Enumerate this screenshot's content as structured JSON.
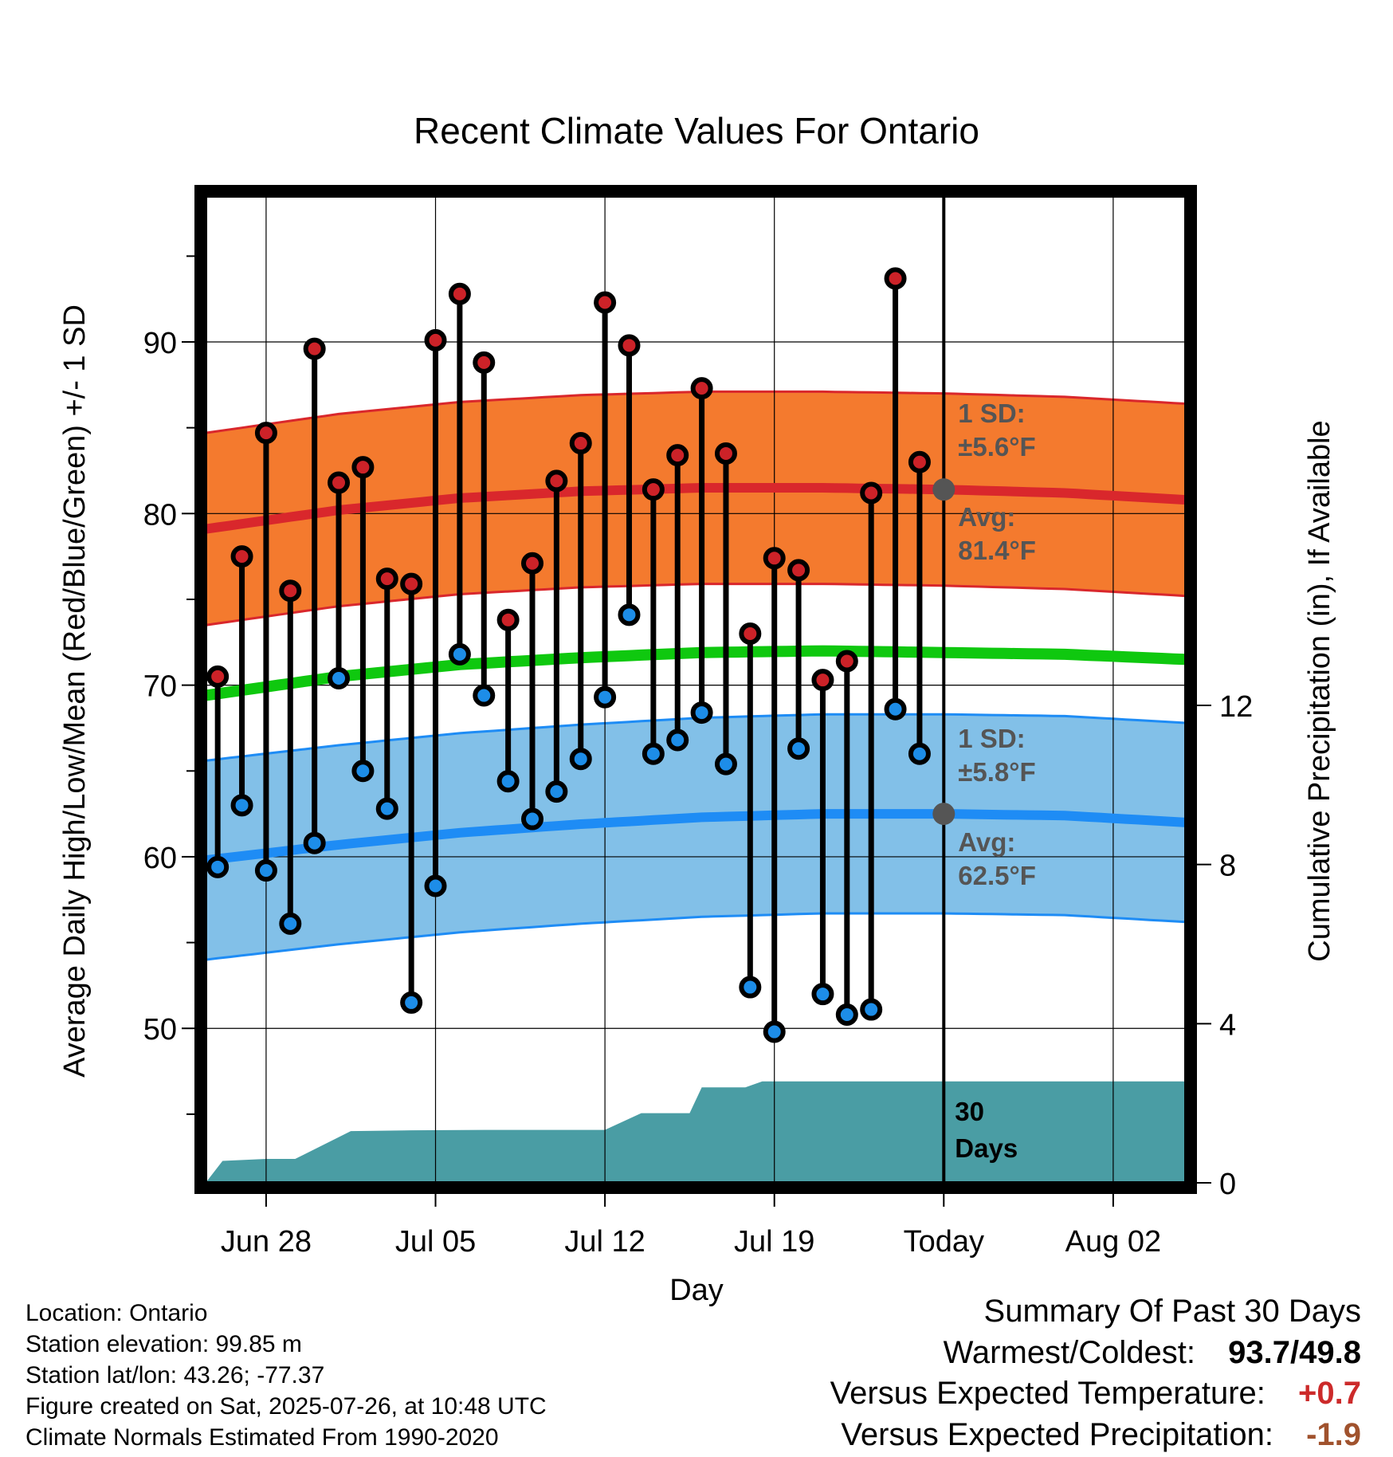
{
  "chart_data": {
    "type": "line",
    "title": "Recent Climate Values For Ontario",
    "xlabel": "Day",
    "ylabel": "Average Daily High/Low/Mean (Red/Blue/Green) +/- 1 SD",
    "y2label": "Cumulative Precipitation (in), If Available",
    "x_ticks": [
      "Jun 28",
      "Jul 05",
      "Jul 12",
      "Jul 19",
      "Today",
      "Aug 02"
    ],
    "y_ticks": [
      50,
      60,
      70,
      80,
      90
    ],
    "y2_ticks": [
      0,
      4,
      8,
      12
    ],
    "ylim": [
      41,
      98.5
    ],
    "y2lim": [
      0,
      24.8
    ],
    "x_range_days": [
      -30.5,
      10
    ],
    "grid": true,
    "daily": {
      "days_before_today": [
        -30,
        -29,
        -28,
        -27,
        -26,
        -25,
        -24,
        -23,
        -22,
        -21,
        -20,
        -19,
        -18,
        -17,
        -16,
        -15,
        -14,
        -13,
        -12,
        -11,
        -10,
        -9,
        -8,
        -7,
        -6,
        -5,
        -4,
        -3,
        -2,
        -1
      ],
      "high": [
        70.5,
        77.5,
        84.7,
        75.5,
        89.6,
        81.8,
        82.7,
        76.2,
        75.9,
        90.1,
        92.8,
        88.8,
        73.8,
        77.1,
        81.9,
        84.1,
        92.3,
        89.8,
        81.4,
        83.4,
        87.3,
        83.5,
        73.0,
        77.4,
        76.7,
        70.3,
        71.4,
        81.2,
        93.7,
        83.0
      ],
      "low": [
        59.4,
        63.0,
        59.2,
        56.1,
        60.8,
        70.4,
        65.0,
        62.8,
        51.5,
        58.3,
        71.8,
        69.4,
        64.4,
        62.2,
        63.8,
        65.7,
        69.3,
        74.1,
        66.0,
        66.8,
        68.4,
        65.4,
        52.4,
        49.8,
        66.3,
        52.0,
        50.8,
        51.1,
        68.6,
        66.0
      ]
    },
    "normals": {
      "days": [
        -30.5,
        -25,
        -20,
        -15,
        -10,
        -5,
        0,
        5,
        10
      ],
      "avg_high": [
        79.1,
        80.2,
        80.9,
        81.3,
        81.5,
        81.5,
        81.4,
        81.2,
        80.8
      ],
      "avg_low": [
        59.8,
        60.7,
        61.4,
        61.9,
        62.3,
        62.5,
        62.5,
        62.4,
        62.0
      ],
      "avg_mean": [
        69.4,
        70.5,
        71.2,
        71.6,
        71.9,
        72.0,
        71.9,
        71.8,
        71.5
      ],
      "high_sd": 5.6,
      "low_sd": 5.8
    },
    "precipitation": {
      "days": [
        -30.5,
        -29.8,
        -28,
        -26.8,
        -24.5,
        -22,
        -19,
        -15,
        -14,
        -12.5,
        -12,
        -10.5,
        -10,
        -8.2,
        -7.5,
        -5,
        0,
        10
      ],
      "cumulative": [
        0.0,
        0.55,
        0.6,
        0.6,
        1.3,
        1.32,
        1.33,
        1.33,
        1.33,
        1.75,
        1.75,
        1.75,
        2.4,
        2.4,
        2.55,
        2.55,
        2.55,
        2.55
      ]
    },
    "annotations": {
      "high_sd": [
        "1 SD:",
        "±5.6°F"
      ],
      "high_avg": [
        "Avg:",
        "81.4°F"
      ],
      "low_sd": [
        "1 SD:",
        "±5.8°F"
      ],
      "low_avg": [
        "Avg:",
        "62.5°F"
      ],
      "days": [
        "30",
        "Days"
      ]
    },
    "colors": {
      "high_band": "#f47a2e",
      "high_line": "#d9272c",
      "low_band": "#82c0e8",
      "low_line": "#1e8cf5",
      "mean_line": "#0fc80f",
      "precip": "#4a9da4",
      "high_dot": "#cc2228",
      "low_dot": "#1d8de8",
      "marker_gray": "#555555"
    }
  },
  "info": {
    "location": "Location: Ontario",
    "elevation": "Station elevation: 99.85 m",
    "latlon": "Station lat/lon: 43.26; -77.37",
    "created": "Figure created on Sat, 2025-07-26, at 10:48 UTC",
    "normals": "Climate Normals Estimated From 1990-2020"
  },
  "summary": {
    "heading": "Summary Of Past 30 Days",
    "warm_cold_label": "Warmest/Coldest:",
    "warm_value": "93.7",
    "separator": "/",
    "cold_value": "49.8",
    "temp_label": "Versus Expected Temperature:",
    "temp_value": "+0.7",
    "temp_color": "#cc2a2a",
    "precip_label": "Versus Expected Precipitation:",
    "precip_value": "-1.9",
    "precip_color": "#a0522d"
  }
}
